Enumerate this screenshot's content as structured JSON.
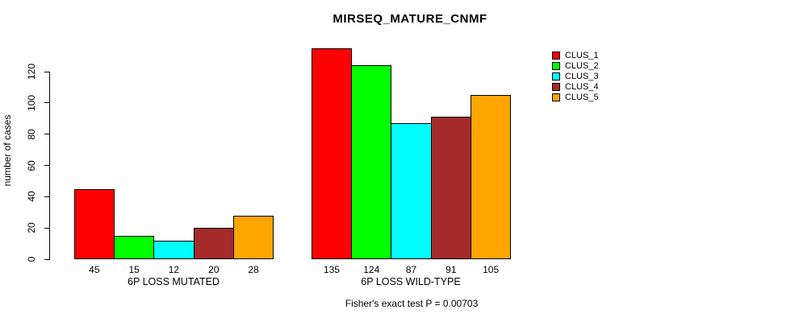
{
  "chart_data": {
    "type": "bar",
    "title": "MIRSEQ_MATURE_CNMF",
    "xlabel": "",
    "ylabel": "number of cases",
    "ylim": [
      0,
      135
    ],
    "yticks": [
      0,
      20,
      40,
      60,
      80,
      100,
      120
    ],
    "grid": false,
    "legend_position": "right",
    "bar_value_labels": true,
    "categories": [
      "6P LOSS MUTATED",
      "6P LOSS WILD-TYPE"
    ],
    "series": [
      {
        "name": "CLUS_1",
        "color": "#FF0000",
        "values": [
          45,
          135
        ]
      },
      {
        "name": "CLUS_2",
        "color": "#00FF00",
        "values": [
          15,
          124
        ]
      },
      {
        "name": "CLUS_3",
        "color": "#00FFFF",
        "values": [
          12,
          87
        ]
      },
      {
        "name": "CLUS_4",
        "color": "#A52A2A",
        "values": [
          20,
          91
        ]
      },
      {
        "name": "CLUS_5",
        "color": "#FFA500",
        "values": [
          28,
          105
        ]
      }
    ],
    "annotation": "Fisher's exact test P = 0.00703"
  }
}
